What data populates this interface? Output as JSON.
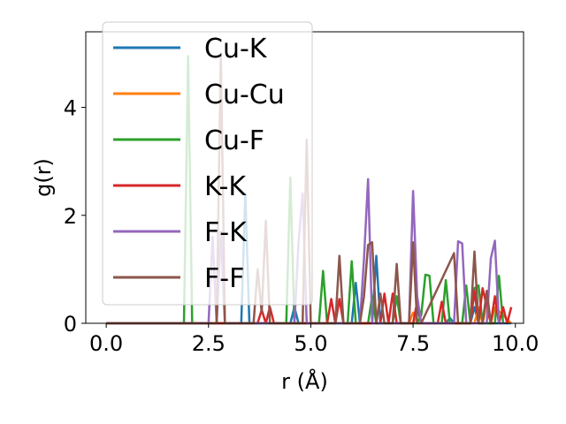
{
  "chart_data": {
    "type": "line",
    "xlabel": "r (Å)",
    "ylabel": "g(r)",
    "xlim": [
      -0.5,
      10.2
    ],
    "ylim": [
      0,
      5.4
    ],
    "xticks": [
      0.0,
      2.5,
      5.0,
      7.5,
      10.0
    ],
    "xtick_labels": [
      "0.0",
      "2.5",
      "5.0",
      "7.5",
      "10.0"
    ],
    "yticks": [
      0,
      2,
      4
    ],
    "ytick_labels": [
      "0",
      "2",
      "4"
    ],
    "grid": false,
    "legend_position": "top-left",
    "series": [
      {
        "name": "Cu-K",
        "color": "#1f77b4",
        "x": [
          0,
          3.3,
          3.4,
          3.5,
          3.6,
          4.5,
          4.6,
          4.7,
          6.0,
          6.1,
          6.2,
          6.5,
          6.6,
          6.7,
          7.5,
          7.6,
          7.7,
          8.3,
          8.4,
          8.5,
          8.9,
          9.0,
          9.1,
          9.2,
          9.9
        ],
        "values": [
          0,
          0,
          2.4,
          0,
          0,
          0,
          0.3,
          0,
          0,
          0.75,
          0,
          0,
          1.25,
          0,
          0,
          0.3,
          0,
          0,
          0.1,
          0,
          0,
          0.3,
          0,
          0,
          0
        ]
      },
      {
        "name": "Cu-Cu",
        "color": "#ff7f0e",
        "x": [
          0,
          7.4,
          7.5,
          7.6,
          9.0,
          9.1,
          9.2,
          9.3,
          9.4,
          9.5,
          9.9
        ],
        "values": [
          0,
          0,
          0.2,
          0,
          0,
          0.3,
          0,
          0.35,
          0,
          0.3,
          0
        ]
      },
      {
        "name": "Cu-F",
        "color": "#2ca02c",
        "x": [
          0,
          1.9,
          2.0,
          2.1,
          2.2,
          4.4,
          4.5,
          4.6,
          5.2,
          5.3,
          5.4,
          5.9,
          6.0,
          6.1,
          6.4,
          6.5,
          6.6,
          7.0,
          7.1,
          7.2,
          7.6,
          7.7,
          7.8,
          7.9,
          8.0,
          8.2,
          8.3,
          8.4,
          8.7,
          8.8,
          8.9,
          9.0,
          9.1,
          9.2,
          9.5,
          9.6,
          9.7
        ],
        "values": [
          0,
          0,
          4.95,
          0,
          0,
          0,
          2.7,
          0,
          0,
          0.97,
          0,
          0,
          1.15,
          0,
          0,
          0.5,
          0,
          0,
          0.5,
          0,
          0,
          0.15,
          0.9,
          0.88,
          0,
          0,
          0.8,
          0,
          0,
          0.7,
          0,
          0.65,
          0.7,
          0,
          0,
          0.88,
          0
        ]
      },
      {
        "name": "K-K",
        "color": "#d62728",
        "x": [
          0,
          3.7,
          3.8,
          3.9,
          4.0,
          4.1,
          5.4,
          5.5,
          5.6,
          5.7,
          5.8,
          6.7,
          6.8,
          6.9,
          7.0,
          7.1,
          7.2,
          7.5,
          7.6,
          7.7,
          8.1,
          8.2,
          8.3,
          8.9,
          9.0,
          9.1,
          9.2,
          9.4,
          9.5,
          9.6,
          9.7,
          9.8,
          9.9
        ],
        "values": [
          0,
          0,
          0.25,
          0,
          0.3,
          0,
          0,
          0.45,
          0,
          0.45,
          0,
          0,
          0.55,
          0,
          0.55,
          0,
          0,
          0,
          0.4,
          0,
          0,
          0.4,
          0,
          0,
          0.6,
          0,
          0.65,
          0,
          0.5,
          0,
          0.3,
          0,
          0.3
        ]
      },
      {
        "name": "F-K",
        "color": "#9467bd",
        "x": [
          0,
          2.5,
          2.6,
          2.7,
          2.8,
          2.9,
          4.6,
          4.7,
          4.8,
          4.9,
          5.0,
          6.2,
          6.3,
          6.4,
          6.5,
          6.6,
          7.4,
          7.5,
          7.6,
          7.7,
          8.5,
          8.6,
          8.7,
          8.8,
          9.3,
          9.4,
          9.5,
          9.6,
          9.7
        ],
        "values": [
          0,
          0,
          1.6,
          0,
          1.7,
          0,
          0,
          1.5,
          2.4,
          0,
          0,
          0,
          1.2,
          2.67,
          0,
          0,
          0,
          2.45,
          0.5,
          0,
          0,
          1.52,
          1.48,
          0,
          0,
          1.2,
          1.53,
          0,
          0
        ]
      },
      {
        "name": "F-F",
        "color": "#8c564b",
        "x": [
          0,
          2.7,
          2.8,
          2.9,
          3.0,
          3.6,
          3.7,
          3.8,
          3.9,
          4.0,
          4.1,
          4.8,
          4.9,
          5.0,
          5.6,
          5.7,
          5.8,
          6.2,
          6.3,
          6.4,
          6.5,
          6.6,
          6.7,
          6.8,
          7.0,
          7.1,
          7.2,
          7.4,
          7.5,
          7.6,
          7.7,
          8.5,
          8.6,
          8.7,
          8.9,
          9.0,
          9.1,
          9.2,
          9.3,
          9.4,
          9.5
        ],
        "values": [
          0,
          0,
          5.0,
          0,
          0,
          0,
          1.0,
          0.2,
          1.9,
          0,
          0,
          0,
          3.4,
          0,
          0,
          1.25,
          0,
          0,
          0.5,
          1.45,
          1.5,
          0,
          0.55,
          0,
          0,
          1.1,
          0,
          0,
          1.5,
          0,
          0,
          1.3,
          0,
          0,
          0,
          1.33,
          0,
          0,
          0.6,
          0,
          0
        ]
      }
    ]
  }
}
